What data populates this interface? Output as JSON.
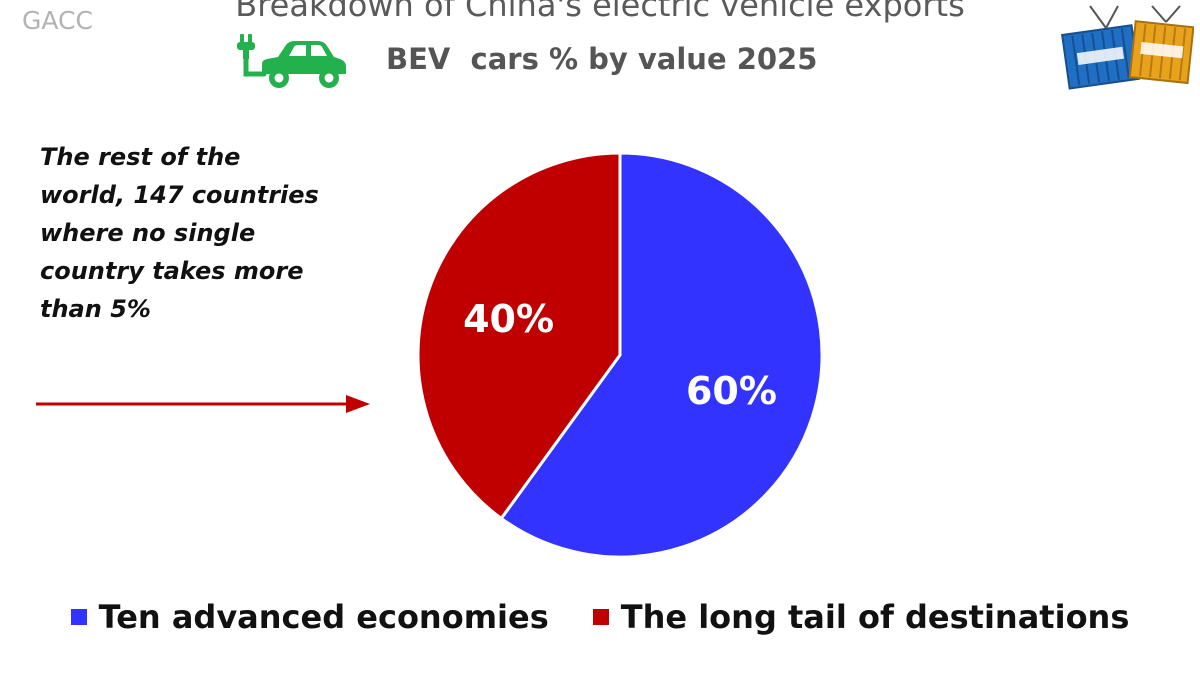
{
  "source": "GACC",
  "annotation": "The rest of the world, 147 countries where no single country takes more than 5%",
  "chart_data": {
    "type": "pie",
    "title": "Breakdown of China's electric vehicle exports",
    "subtitle": "BEV  cars % by value 2025",
    "categories": [
      "Ten advanced economies",
      "The long tail of destinations"
    ],
    "values": [
      60,
      40
    ],
    "data_labels": [
      "60%",
      "40%"
    ],
    "colors": [
      "#3333ff",
      "#c00000"
    ],
    "legend_position": "bottom",
    "start_angle_deg": 0,
    "direction": "clockwise"
  },
  "icons": {
    "ev": "electric-car-icon",
    "logo": "soapbox-containers-logo"
  },
  "colors": {
    "ev_icon": "#22b14c",
    "arrow": "#c00000",
    "logo_blue": "#1f6fc5",
    "logo_orange": "#e8a21c"
  }
}
